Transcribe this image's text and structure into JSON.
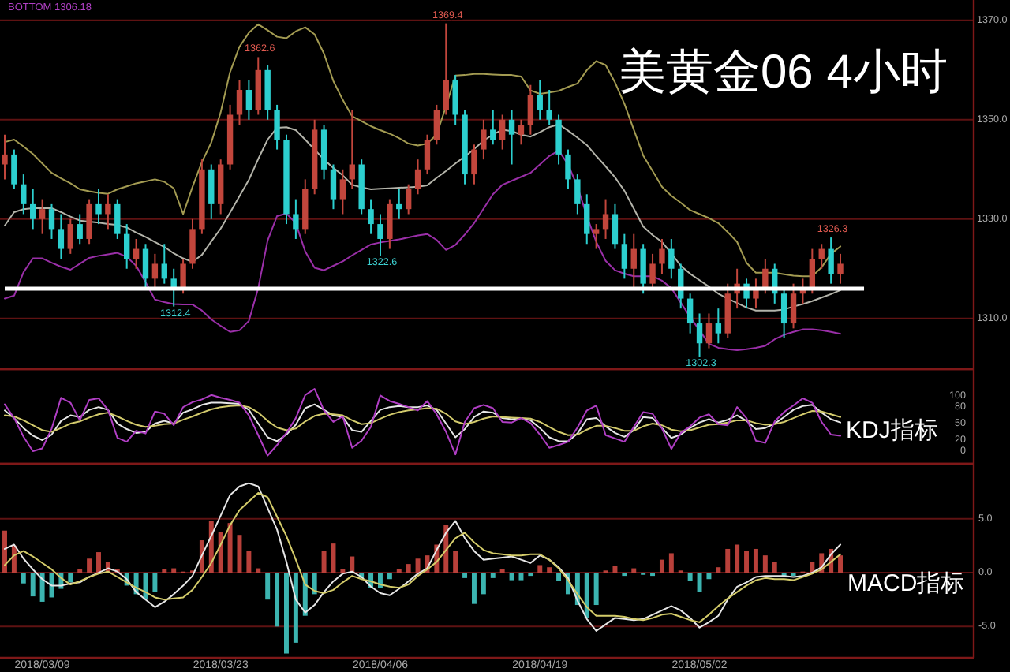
{
  "chart_data": [
    {
      "type": "candlestick",
      "title": "美黄金06 4小时",
      "categories": [
        null,
        null,
        null,
        null,
        null,
        null,
        null,
        null,
        null,
        null,
        null,
        null,
        null,
        null,
        null,
        null,
        null,
        null,
        null,
        null,
        null,
        null,
        null,
        null,
        null,
        null,
        null,
        null,
        null,
        null,
        null,
        null,
        null,
        null,
        null,
        null,
        null,
        null,
        null,
        null,
        null,
        null,
        null,
        null,
        null,
        null,
        null,
        null,
        null,
        null,
        null,
        null,
        null,
        null,
        null,
        null,
        null,
        null,
        null,
        null,
        null,
        null,
        null,
        null,
        null,
        null,
        null,
        null,
        null,
        null,
        null,
        null,
        null,
        null,
        null,
        null,
        null,
        null,
        null,
        null,
        null,
        null,
        null,
        null,
        null,
        null,
        null,
        null,
        null,
        null
      ],
      "ohlc": [
        [
          1341,
          1347,
          1338,
          1343
        ],
        [
          1343,
          1344,
          1336,
          1337
        ],
        [
          1337,
          1339,
          1331,
          1333
        ],
        [
          1333,
          1336,
          1328,
          1330
        ],
        [
          1330,
          1334,
          1327,
          1332
        ],
        [
          1332,
          1333,
          1326,
          1328
        ],
        [
          1328,
          1331,
          1322,
          1324
        ],
        [
          1324,
          1330,
          1323,
          1329
        ],
        [
          1329,
          1331,
          1325,
          1326
        ],
        [
          1326,
          1334,
          1325,
          1333
        ],
        [
          1333,
          1336,
          1329,
          1331
        ],
        [
          1331,
          1335,
          1328,
          1333
        ],
        [
          1333,
          1334,
          1326,
          1327
        ],
        [
          1327,
          1329,
          1320,
          1322
        ],
        [
          1322,
          1326,
          1320,
          1324
        ],
        [
          1324,
          1325,
          1316,
          1318
        ],
        [
          1318,
          1323,
          1316,
          1321
        ],
        [
          1321,
          1325,
          1317,
          1318
        ],
        [
          1318,
          1320,
          1312.4,
          1316
        ],
        [
          1316,
          1322,
          1315,
          1321
        ],
        [
          1321,
          1330,
          1320,
          1328
        ],
        [
          1328,
          1342,
          1327,
          1340
        ],
        [
          1340,
          1341,
          1330,
          1333
        ],
        [
          1333,
          1342,
          1331,
          1341
        ],
        [
          1341,
          1353,
          1340,
          1351
        ],
        [
          1351,
          1358,
          1349,
          1356
        ],
        [
          1356,
          1358,
          1350,
          1352
        ],
        [
          1352,
          1362.6,
          1351,
          1360
        ],
        [
          1360,
          1361,
          1350,
          1352
        ],
        [
          1352,
          1353,
          1344,
          1346
        ],
        [
          1346,
          1347,
          1329,
          1331
        ],
        [
          1331,
          1334,
          1326,
          1328
        ],
        [
          1328,
          1338,
          1327,
          1336
        ],
        [
          1336,
          1350,
          1335,
          1348
        ],
        [
          1348,
          1349,
          1338,
          1340
        ],
        [
          1340,
          1341,
          1332,
          1334
        ],
        [
          1334,
          1340,
          1331,
          1338
        ],
        [
          1338,
          1352,
          1336,
          1341
        ],
        [
          1341,
          1342,
          1331,
          1332
        ],
        [
          1332,
          1334,
          1327,
          1329
        ],
        [
          1329,
          1331,
          1322.6,
          1326
        ],
        [
          1326,
          1334,
          1324,
          1333
        ],
        [
          1333,
          1336,
          1330,
          1332
        ],
        [
          1332,
          1337,
          1331,
          1336
        ],
        [
          1336,
          1342,
          1335,
          1340
        ],
        [
          1340,
          1347,
          1339,
          1346
        ],
        [
          1346,
          1353,
          1345,
          1352
        ],
        [
          1352,
          1369.4,
          1351,
          1358
        ],
        [
          1358,
          1359,
          1349,
          1351
        ],
        [
          1351,
          1352,
          1337,
          1339
        ],
        [
          1339,
          1345,
          1337,
          1344
        ],
        [
          1344,
          1350,
          1342,
          1348
        ],
        [
          1348,
          1352,
          1345,
          1346
        ],
        [
          1346,
          1351,
          1344,
          1350
        ],
        [
          1350,
          1352,
          1341,
          1347
        ],
        [
          1347,
          1350,
          1345,
          1349
        ],
        [
          1349,
          1357,
          1347,
          1355
        ],
        [
          1355,
          1358,
          1350,
          1352
        ],
        [
          1352,
          1356,
          1349,
          1350
        ],
        [
          1350,
          1351,
          1341,
          1343
        ],
        [
          1343,
          1344,
          1336,
          1338
        ],
        [
          1338,
          1339,
          1331,
          1333
        ],
        [
          1333,
          1335,
          1325,
          1327
        ],
        [
          1327,
          1329,
          1324,
          1328
        ],
        [
          1328,
          1334,
          1326,
          1331
        ],
        [
          1331,
          1333,
          1324,
          1325
        ],
        [
          1325,
          1327,
          1318,
          1320
        ],
        [
          1320,
          1327,
          1316,
          1324
        ],
        [
          1324,
          1325,
          1315,
          1317
        ],
        [
          1317,
          1323,
          1316,
          1321
        ],
        [
          1321,
          1326,
          1319,
          1324
        ],
        [
          1324,
          1326,
          1318,
          1320
        ],
        [
          1320,
          1321,
          1312,
          1314
        ],
        [
          1314,
          1315,
          1307,
          1309
        ],
        [
          1309,
          1311,
          1302.3,
          1305
        ],
        [
          1305,
          1311,
          1304,
          1309
        ],
        [
          1309,
          1312,
          1305,
          1307
        ],
        [
          1307,
          1317,
          1306,
          1315
        ],
        [
          1315,
          1320,
          1312,
          1317
        ],
        [
          1317,
          1318,
          1312,
          1314
        ],
        [
          1314,
          1318,
          1312,
          1316
        ],
        [
          1316,
          1322,
          1315,
          1320
        ],
        [
          1320,
          1321,
          1313,
          1315
        ],
        [
          1315,
          1316,
          1306,
          1309
        ],
        [
          1309,
          1317,
          1308,
          1315
        ],
        [
          1315,
          1318,
          1313,
          1316
        ],
        [
          1316,
          1324,
          1315,
          1322
        ],
        [
          1322,
          1325,
          1320,
          1324
        ],
        [
          1324,
          1326.3,
          1317,
          1319
        ],
        [
          1319,
          1323,
          1317,
          1321
        ]
      ],
      "series": [
        {
          "type": "line",
          "color": "#a39b52",
          "values": [
            1345.5,
            1346,
            1344.6,
            1343.1,
            1341.2,
            1339.3,
            1338.2,
            1337.2,
            1336,
            1335.6,
            1335.3,
            1335.1,
            1336,
            1336.6,
            1337.2,
            1337.6,
            1338,
            1337.5,
            1336.2,
            1331,
            1336.5,
            1341.5,
            1345.4,
            1351.5,
            1359.6,
            1364.7,
            1367.5,
            1369.2,
            1368,
            1366.7,
            1366.4,
            1367.8,
            1368.6,
            1367.2,
            1363.3,
            1357.8,
            1354,
            1350.7,
            1349.7,
            1348.7,
            1347.9,
            1347.2,
            1346.3,
            1345.2,
            1344.8,
            1345.2,
            1347,
            1352.7,
            1358.9,
            1359,
            1359.2,
            1359.2,
            1359.1,
            1359,
            1359,
            1358.7,
            1355.9,
            1355.2,
            1355.5,
            1355.8,
            1356.6,
            1357.3,
            1360,
            1361.8,
            1361,
            1357.5,
            1353.2,
            1348,
            1342.8,
            1339.7,
            1336.5,
            1334.7,
            1333.3,
            1331.8,
            1331,
            1330.2,
            1329.2,
            1327.4,
            1325.4,
            1321.2,
            1319.2,
            1319.2,
            1319.2,
            1318.9,
            1318.6,
            1318.5,
            1318.5,
            1320.3,
            1323,
            1324.5
          ]
        },
        {
          "type": "line",
          "color": "#b4b4aa",
          "values": [
            1328.7,
            1331.4,
            1332,
            1332.2,
            1332.2,
            1332.2,
            1331.4,
            1330.5,
            1329.7,
            1329.5,
            1329.3,
            1329,
            1328.8,
            1328.3,
            1327.3,
            1326.4,
            1325.4,
            1324.4,
            1323.1,
            1322.1,
            1321.4,
            1322.8,
            1325.5,
            1328.1,
            1331.3,
            1334.6,
            1337.9,
            1342.1,
            1346,
            1348.4,
            1348.5,
            1347.9,
            1346,
            1344,
            1342,
            1340.3,
            1338.8,
            1336.9,
            1336.4,
            1336,
            1336.1,
            1336.2,
            1336.3,
            1336.4,
            1336.5,
            1336.8,
            1338.3,
            1339.7,
            1341.2,
            1342.6,
            1344.1,
            1345.8,
            1347,
            1348,
            1347.7,
            1347,
            1346.6,
            1347.5,
            1348.5,
            1349.1,
            1347.8,
            1346.4,
            1344.9,
            1342.7,
            1340.6,
            1338.4,
            1335.7,
            1332.1,
            1328.5,
            1326.8,
            1325.4,
            1323.1,
            1320.6,
            1319,
            1317.7,
            1316.4,
            1315,
            1314,
            1313.1,
            1312.2,
            1311.6,
            1311.6,
            1311.6,
            1311.8,
            1312.4,
            1312.9,
            1313.5,
            1314.2,
            1314.9,
            1315.7
          ]
        },
        {
          "type": "line",
          "color": "#9a2fa8",
          "values": [
            1314,
            1314.6,
            1319.3,
            1322.1,
            1322.1,
            1321.2,
            1320.4,
            1319.8,
            1321,
            1322.2,
            1322.6,
            1322.9,
            1323.2,
            1322.4,
            1320.6,
            1317.3,
            1313.8,
            1313.3,
            1312.9,
            1312.8,
            1312.8,
            1311.6,
            1309.8,
            1308.5,
            1307.3,
            1307.6,
            1309.5,
            1316.1,
            1325.7,
            1330.6,
            1331.1,
            1329.2,
            1323.5,
            1320.2,
            1319.7,
            1320.6,
            1321.5,
            1322.7,
            1323.8,
            1324.9,
            1325.3,
            1325.6,
            1325.9,
            1326.3,
            1326.7,
            1327,
            1325.8,
            1323.8,
            1324.8,
            1326.9,
            1329.2,
            1332.1,
            1335,
            1336.9,
            1337.7,
            1338.5,
            1339.3,
            1341,
            1342.7,
            1343.8,
            1341,
            1336.5,
            1330.6,
            1325.4,
            1321.6,
            1319.7,
            1319,
            1318.5,
            1318.5,
            1318.5,
            1317.6,
            1316.1,
            1313.2,
            1310.3,
            1307.6,
            1304.9,
            1304.1,
            1303.8,
            1303.6,
            1303.8,
            1304.1,
            1304.5,
            1305.8,
            1306.7,
            1307.3,
            1307.8,
            1307.8,
            1307.6,
            1307.3,
            1306.9
          ]
        }
      ],
      "ylim": [
        1299.8,
        1374.1
      ],
      "yticks": [
        {
          "value": 1310,
          "label": "1310.0"
        },
        {
          "value": 1330,
          "label": "1330.0"
        },
        {
          "value": 1350,
          "label": "1350.0"
        },
        {
          "value": 1370,
          "label": "1370.0"
        }
      ],
      "grid": "y",
      "tick_labels": "y",
      "ref_lines": [
        {
          "axis": "y",
          "value": 1316,
          "color": "#ffffff"
        }
      ],
      "annotations": [
        "BOTTOM 1306.18",
        {
          "text": "1362.6",
          "y": 1362.6
        },
        {
          "text": "1369.4",
          "y": 1369.4
        },
        {
          "text": "1312.4",
          "y": 1312.4
        },
        {
          "text": "1322.6",
          "y": 1322.6
        },
        {
          "text": "1302.3",
          "y": 1302.3
        },
        {
          "text": "1326.3",
          "y": 1326.3
        }
      ]
    },
    {
      "type": "line",
      "title": "KDJ指标",
      "categories": [
        null,
        null,
        null,
        null,
        null,
        null,
        null,
        null,
        null,
        null,
        null,
        null,
        null,
        null,
        null,
        null,
        null,
        null,
        null,
        null,
        null,
        null,
        null,
        null,
        null,
        null,
        null,
        null,
        null,
        null,
        null,
        null,
        null,
        null,
        null,
        null,
        null,
        null,
        null,
        null,
        null,
        null,
        null,
        null,
        null,
        null,
        null,
        null,
        null,
        null,
        null,
        null,
        null,
        null,
        null,
        null,
        null,
        null,
        null,
        null,
        null,
        null,
        null,
        null,
        null,
        null,
        null,
        null,
        null,
        null,
        null,
        null,
        null,
        null,
        null,
        null,
        null,
        null,
        null,
        null,
        null,
        null,
        null,
        null,
        null,
        null,
        null,
        null,
        null,
        null
      ],
      "series": [
        {
          "color": "#e6e6e6",
          "values": [
            74,
            60,
            42,
            28,
            20,
            30,
            55,
            65,
            62,
            75,
            80,
            75,
            50,
            40,
            33,
            35,
            50,
            55,
            50,
            70,
            76,
            84,
            88,
            88,
            87,
            86,
            75,
            50,
            25,
            18,
            30,
            48,
            78,
            85,
            75,
            65,
            62,
            38,
            35,
            55,
            75,
            80,
            82,
            80,
            80,
            83,
            75,
            50,
            25,
            40,
            62,
            72,
            70,
            60,
            58,
            60,
            56,
            42,
            25,
            18,
            18,
            32,
            58,
            60,
            45,
            33,
            26,
            38,
            62,
            60,
            42,
            24,
            30,
            42,
            52,
            58,
            52,
            57,
            65,
            55,
            40,
            42,
            50,
            62,
            75,
            82,
            84,
            70,
            58,
            52
          ]
        },
        {
          "color": "#d2ca6c",
          "values": [
            65,
            63,
            56,
            47,
            38,
            35,
            42,
            50,
            54,
            61,
            67,
            70,
            63,
            55,
            48,
            44,
            46,
            49,
            50,
            57,
            63,
            70,
            76,
            80,
            82,
            83,
            80,
            70,
            55,
            43,
            38,
            41,
            54,
            64,
            68,
            67,
            65,
            56,
            49,
            51,
            59,
            66,
            71,
            74,
            76,
            78,
            77,
            68,
            54,
            49,
            53,
            59,
            63,
            62,
            61,
            60,
            59,
            53,
            44,
            35,
            29,
            30,
            39,
            46,
            46,
            42,
            37,
            37,
            45,
            50,
            47,
            39,
            36,
            38,
            43,
            48,
            49,
            52,
            56,
            56,
            51,
            48,
            49,
            53,
            60,
            67,
            73,
            72,
            67,
            62
          ]
        },
        {
          "color": "#b03ec4",
          "values": [
            85,
            60,
            26,
            0,
            5,
            41,
            97,
            88,
            56,
            93,
            96,
            75,
            24,
            17,
            37,
            32,
            72,
            68,
            47,
            80,
            89,
            94,
            102,
            97,
            93,
            88,
            65,
            29,
            -8,
            11,
            33,
            60,
            102,
            113,
            74,
            53,
            63,
            6,
            19,
            44,
            101,
            91,
            86,
            80,
            74,
            91,
            67,
            35,
            -6,
            53,
            78,
            84,
            78,
            53,
            52,
            60,
            51,
            30,
            6,
            11,
            17,
            43,
            74,
            83,
            29,
            23,
            17,
            44,
            71,
            68,
            41,
            4,
            33,
            45,
            61,
            67,
            49,
            47,
            80,
            60,
            19,
            15,
            54,
            71,
            83,
            96,
            88,
            53,
            30,
            28
          ]
        }
      ],
      "ylim": [
        -23,
        149
      ],
      "yticks": [
        0,
        20,
        50,
        80,
        100
      ],
      "tick_labels": "y"
    },
    {
      "type": "bar",
      "title": "MACD指标",
      "categories": [
        null,
        null,
        null,
        null,
        "2018/03/09",
        null,
        null,
        null,
        null,
        null,
        null,
        null,
        null,
        null,
        null,
        null,
        null,
        null,
        null,
        null,
        null,
        null,
        null,
        "2018/03/23",
        null,
        null,
        null,
        null,
        null,
        null,
        null,
        null,
        null,
        null,
        null,
        null,
        null,
        null,
        null,
        null,
        "2018/04/06",
        null,
        null,
        null,
        null,
        null,
        null,
        null,
        null,
        null,
        null,
        null,
        null,
        null,
        null,
        null,
        null,
        "2018/04/19",
        null,
        null,
        null,
        null,
        null,
        null,
        null,
        null,
        null,
        null,
        null,
        null,
        null,
        null,
        null,
        null,
        "2018/05/02",
        null,
        null,
        null,
        null,
        null,
        null,
        null,
        null,
        null,
        null,
        null,
        null,
        null,
        null,
        null
      ],
      "series": [
        {
          "type": "bar",
          "values": [
            3.9,
            2.5,
            -1.0,
            -2.2,
            -2.7,
            -2.3,
            -1.5,
            -0.9,
            0.3,
            1.3,
            1.9,
            1.0,
            0.3,
            -1.2,
            -2.0,
            -2.5,
            -1.8,
            0.3,
            0.4,
            0.1,
            0.2,
            3.0,
            4.8,
            3.8,
            4.6,
            3.5,
            2.0,
            0.4,
            -2.5,
            -5.0,
            -7.5,
            -6.5,
            -4.0,
            -2.0,
            2.0,
            2.7,
            0.3,
            1.5,
            -0.5,
            -1.4,
            -1.4,
            -0.6,
            0.3,
            0.8,
            1.3,
            1.6,
            2.6,
            4.4,
            2.0,
            -0.5,
            -2.9,
            -2.0,
            -0.5,
            0.3,
            -0.7,
            -0.7,
            -0.3,
            0.7,
            0.5,
            -0.8,
            -2.0,
            -3.0,
            -4.2,
            -3.0,
            0.2,
            0.6,
            -0.3,
            0.4,
            -0.2,
            -0.3,
            1.2,
            1.8,
            0.2,
            -0.8,
            -1.8,
            -0.6,
            0.5,
            2.2,
            2.6,
            2.0,
            2.2,
            1.6,
            1.0,
            -0.3,
            -0.3,
            0.1,
            1.0,
            1.8,
            2.2,
            1.6
          ],
          "colors": [
            "#b8403a",
            "#b8403a",
            "#3cb4b0",
            "#3cb4b0",
            "#3cb4b0",
            "#3cb4b0",
            "#3cb4b0",
            "#3cb4b0",
            "#b8403a",
            "#b8403a",
            "#b8403a",
            "#b8403a",
            "#b8403a",
            "#3cb4b0",
            "#3cb4b0",
            "#3cb4b0",
            "#3cb4b0",
            "#b8403a",
            "#b8403a",
            "#b8403a",
            "#b8403a",
            "#b8403a",
            "#b8403a",
            "#b8403a",
            "#b8403a",
            "#b8403a",
            "#b8403a",
            "#b8403a",
            "#3cb4b0",
            "#3cb4b0",
            "#3cb4b0",
            "#3cb4b0",
            "#3cb4b0",
            "#3cb4b0",
            "#b8403a",
            "#b8403a",
            "#b8403a",
            "#b8403a",
            "#3cb4b0",
            "#3cb4b0",
            "#3cb4b0",
            "#3cb4b0",
            "#b8403a",
            "#b8403a",
            "#b8403a",
            "#b8403a",
            "#b8403a",
            "#b8403a",
            "#b8403a",
            "#3cb4b0",
            "#3cb4b0",
            "#3cb4b0",
            "#3cb4b0",
            "#b8403a",
            "#3cb4b0",
            "#3cb4b0",
            "#3cb4b0",
            "#b8403a",
            "#b8403a",
            "#3cb4b0",
            "#3cb4b0",
            "#3cb4b0",
            "#3cb4b0",
            "#3cb4b0",
            "#b8403a",
            "#b8403a",
            "#3cb4b0",
            "#b8403a",
            "#3cb4b0",
            "#3cb4b0",
            "#b8403a",
            "#b8403a",
            "#b8403a",
            "#3cb4b0",
            "#3cb4b0",
            "#3cb4b0",
            "#b8403a",
            "#b8403a",
            "#b8403a",
            "#b8403a",
            "#b8403a",
            "#b8403a",
            "#b8403a",
            "#3cb4b0",
            "#3cb4b0",
            "#b8403a",
            "#b8403a",
            "#b8403a",
            "#b8403a",
            "#b8403a"
          ]
        },
        {
          "type": "line",
          "color": "#e6e6e6",
          "values": [
            2.2,
            2.6,
            1.3,
            0.3,
            -0.6,
            -1.2,
            -1.2,
            -1.0,
            -0.9,
            -0.4,
            0.0,
            0.4,
            0.1,
            -0.6,
            -1.8,
            -2.5,
            -3.2,
            -2.7,
            -2.0,
            -1.2,
            -0.3,
            1.6,
            3.4,
            5.3,
            7.2,
            8.0,
            8.3,
            8.0,
            6.0,
            4.0,
            1.0,
            -2.5,
            -3.7,
            -3.0,
            -1.8,
            -0.8,
            -0.1,
            0.1,
            -0.4,
            -1.3,
            -1.9,
            -2.1,
            -1.5,
            -0.8,
            -0.1,
            0.4,
            2.1,
            3.7,
            4.8,
            3.2,
            2.0,
            1.2,
            1.3,
            1.4,
            1.5,
            1.2,
            0.9,
            1.6,
            1.2,
            0.5,
            -0.5,
            -2.6,
            -4.3,
            -5.4,
            -4.8,
            -4.2,
            -4.3,
            -4.4,
            -4.3,
            -3.9,
            -3.5,
            -3.1,
            -3.5,
            -4.2,
            -5.1,
            -4.6,
            -4.0,
            -2.5,
            -1.3,
            -0.9,
            -0.4,
            -0.3,
            -0.3,
            -0.3,
            -0.4,
            -0.3,
            0.0,
            0.5,
            1.7,
            2.6
          ]
        },
        {
          "type": "line",
          "color": "#d4cc6a",
          "values": [
            0.7,
            1.6,
            2.0,
            1.5,
            0.9,
            0.3,
            -0.5,
            -1.1,
            -0.8,
            -0.4,
            -0.1,
            0.1,
            -0.4,
            -0.9,
            -1.4,
            -1.8,
            -2.3,
            -2.5,
            -2.4,
            -2.3,
            -1.6,
            -0.4,
            0.9,
            2.6,
            4.4,
            5.8,
            6.6,
            7.4,
            7.0,
            5.2,
            3.4,
            1.2,
            -1.1,
            -1.7,
            -1.9,
            -1.6,
            -0.9,
            -0.3,
            -0.6,
            -0.8,
            -1.1,
            -1.3,
            -1.4,
            -1.1,
            -0.3,
            0.3,
            1.0,
            2.1,
            3.2,
            3.7,
            2.8,
            2.1,
            1.8,
            1.7,
            1.6,
            1.6,
            1.7,
            1.7,
            1.2,
            0.4,
            -0.7,
            -2.0,
            -3.2,
            -4.0,
            -4.0,
            -4.0,
            -4.1,
            -4.3,
            -4.4,
            -4.2,
            -3.9,
            -3.8,
            -4.1,
            -4.4,
            -4.6,
            -3.9,
            -3.1,
            -2.4,
            -1.8,
            -1.2,
            -0.7,
            -0.5,
            -0.6,
            -0.6,
            -0.7,
            -0.4,
            -0.1,
            0.3,
            1.0,
            1.7
          ]
        }
      ],
      "ylim": [
        -7.9,
        10.1
      ],
      "yticks": [
        {
          "value": 5,
          "label": "5.0"
        },
        {
          "value": 0,
          "label": "0.0"
        },
        {
          "value": -5,
          "label": "-5.0"
        }
      ],
      "grid": "y"
    }
  ]
}
